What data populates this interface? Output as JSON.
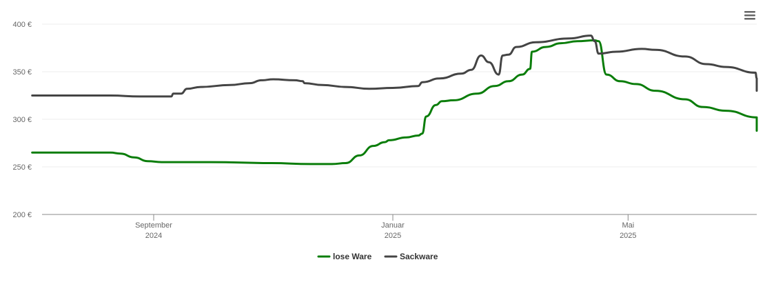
{
  "chart_data": {
    "type": "line",
    "x_start": "2024-07-01",
    "x_end": "2025-06-15",
    "ylim": [
      200,
      400
    ],
    "y_ticks": [
      200,
      250,
      300,
      350,
      400
    ],
    "y_tick_labels": [
      "200 €",
      "250 €",
      "300 €",
      "350 €",
      "400 €"
    ],
    "x_ticks": [
      {
        "date": "2024-09-01",
        "label": "September",
        "year": "2024"
      },
      {
        "date": "2025-01-01",
        "label": "Januar",
        "year": "2025"
      },
      {
        "date": "2025-05-01",
        "label": "Mai",
        "year": "2025"
      }
    ],
    "grid": true,
    "legend_position": "bottom-center",
    "series": [
      {
        "name": "lose Ware",
        "color": "#0a7d0a",
        "points": [
          [
            "2024-07-01",
            265
          ],
          [
            "2024-08-10",
            265
          ],
          [
            "2024-08-15",
            264
          ],
          [
            "2024-08-22",
            260
          ],
          [
            "2024-08-29",
            256
          ],
          [
            "2024-09-05",
            255
          ],
          [
            "2024-09-30",
            255
          ],
          [
            "2024-10-31",
            254
          ],
          [
            "2024-11-20",
            253
          ],
          [
            "2024-12-01",
            253
          ],
          [
            "2024-12-08",
            254
          ],
          [
            "2024-12-15",
            262
          ],
          [
            "2024-12-22",
            272
          ],
          [
            "2024-12-28",
            276
          ],
          [
            "2024-12-30",
            278
          ],
          [
            "2025-01-08",
            281
          ],
          [
            "2025-01-14",
            283
          ],
          [
            "2025-01-16",
            285
          ],
          [
            "2025-01-18",
            303
          ],
          [
            "2025-01-23",
            315
          ],
          [
            "2025-01-26",
            319
          ],
          [
            "2025-02-01",
            320
          ],
          [
            "2025-02-13",
            327
          ],
          [
            "2025-02-22",
            335
          ],
          [
            "2025-03-01",
            340
          ],
          [
            "2025-03-08",
            347
          ],
          [
            "2025-03-12",
            353
          ],
          [
            "2025-03-13",
            371
          ],
          [
            "2025-03-20",
            376
          ],
          [
            "2025-03-28",
            380
          ],
          [
            "2025-04-05",
            382
          ],
          [
            "2025-04-14",
            383
          ],
          [
            "2025-04-16",
            382
          ],
          [
            "2025-04-20",
            347
          ],
          [
            "2025-04-27",
            340
          ],
          [
            "2025-05-05",
            337
          ],
          [
            "2025-05-15",
            330
          ],
          [
            "2025-05-30",
            321
          ],
          [
            "2025-06-08",
            313
          ],
          [
            "2025-06-20",
            309
          ],
          [
            "2025-07-15",
            302
          ],
          [
            "2025-08-15",
            293
          ],
          [
            "2025-08-31",
            288
          ],
          [
            "2025-09-01",
            300
          ]
        ]
      },
      {
        "name": "Sackware",
        "color": "#444444",
        "points": [
          [
            "2024-07-01",
            325
          ],
          [
            "2024-08-10",
            325
          ],
          [
            "2024-08-25",
            324
          ],
          [
            "2024-09-10",
            324
          ],
          [
            "2024-09-11",
            327
          ],
          [
            "2024-09-15",
            327
          ],
          [
            "2024-09-18",
            332
          ],
          [
            "2024-09-25",
            334
          ],
          [
            "2024-10-10",
            336
          ],
          [
            "2024-10-20",
            338
          ],
          [
            "2024-10-26",
            341
          ],
          [
            "2024-11-01",
            342
          ],
          [
            "2024-11-12",
            341
          ],
          [
            "2024-11-16",
            340
          ],
          [
            "2024-11-17",
            338
          ],
          [
            "2024-11-26",
            336
          ],
          [
            "2024-12-08",
            334
          ],
          [
            "2024-12-20",
            332
          ],
          [
            "2025-01-01",
            333
          ],
          [
            "2025-01-14",
            335
          ],
          [
            "2025-01-16",
            339
          ],
          [
            "2025-01-25",
            343
          ],
          [
            "2025-02-05",
            348
          ],
          [
            "2025-02-10",
            352
          ],
          [
            "2025-02-15",
            367
          ],
          [
            "2025-02-19",
            360
          ],
          [
            "2025-02-24",
            347
          ],
          [
            "2025-02-26",
            367
          ],
          [
            "2025-02-29",
            368
          ],
          [
            "2025-03-05",
            376
          ],
          [
            "2025-03-15",
            381
          ],
          [
            "2025-04-01",
            385
          ],
          [
            "2025-04-12",
            388
          ],
          [
            "2025-04-14",
            382
          ],
          [
            "2025-04-16",
            369
          ],
          [
            "2025-04-25",
            371
          ],
          [
            "2025-05-08",
            374
          ],
          [
            "2025-05-15",
            373
          ],
          [
            "2025-05-30",
            366
          ],
          [
            "2025-06-10",
            358
          ],
          [
            "2025-06-20",
            355
          ],
          [
            "2025-07-05",
            349
          ],
          [
            "2025-07-25",
            343
          ],
          [
            "2025-08-15",
            337
          ],
          [
            "2025-08-31",
            330
          ],
          [
            "2025-09-01",
            333
          ]
        ]
      }
    ]
  },
  "toolbar": {
    "menu_icon": "hamburger-menu-icon"
  },
  "legend": [
    {
      "label": "lose Ware",
      "color": "#0a7d0a"
    },
    {
      "label": "Sackware",
      "color": "#444444"
    }
  ]
}
